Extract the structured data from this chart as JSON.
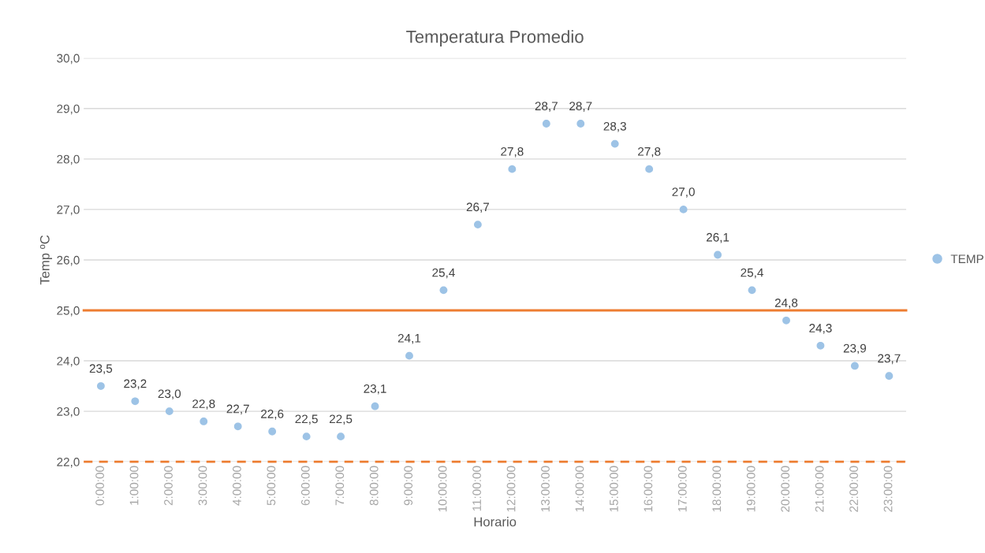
{
  "chart_data": {
    "type": "scatter",
    "title": "Temperatura Promedio",
    "xlabel": "Horario",
    "ylabel": "Temp ºC",
    "categories": [
      "0:00:00",
      "1:00:00",
      "2:00:00",
      "3:00:00",
      "4:00:00",
      "5:00:00",
      "6:00:00",
      "7:00:00",
      "8:00:00",
      "9:00:00",
      "10:00:00",
      "11:00:00",
      "12:00:00",
      "13:00:00",
      "14:00:00",
      "15:00:00",
      "16:00:00",
      "17:00:00",
      "18:00:00",
      "19:00:00",
      "20:00:00",
      "21:00:00",
      "22:00:00",
      "23:00:00"
    ],
    "series": [
      {
        "name": "TEMP",
        "color": "#9dc3e6",
        "values": [
          23.5,
          23.2,
          23.0,
          22.8,
          22.7,
          22.6,
          22.5,
          22.5,
          23.1,
          24.1,
          25.4,
          26.7,
          27.8,
          28.7,
          28.7,
          28.3,
          27.8,
          27.0,
          26.1,
          25.4,
          24.8,
          24.3,
          23.9,
          23.7
        ],
        "value_labels": [
          "23,5",
          "23,2",
          "23,0",
          "22,8",
          "22,7",
          "22,6",
          "22,5",
          "22,5",
          "23,1",
          "24,1",
          "25,4",
          "26,7",
          "27,8",
          "28,7",
          "28,7",
          "28,3",
          "27,8",
          "27,0",
          "26,1",
          "25,4",
          "24,8",
          "24,3",
          "23,9",
          "23,7"
        ]
      }
    ],
    "ylim": [
      22,
      30
    ],
    "yticks": [
      {
        "value": 22,
        "label": "22,0"
      },
      {
        "value": 23,
        "label": "23,0"
      },
      {
        "value": 24,
        "label": "24,0"
      },
      {
        "value": 25,
        "label": "25,0"
      },
      {
        "value": 26,
        "label": "26,0"
      },
      {
        "value": 27,
        "label": "27,0"
      },
      {
        "value": 28,
        "label": "28,0"
      },
      {
        "value": 29,
        "label": "29,0"
      },
      {
        "value": 30,
        "label": "30,0"
      }
    ],
    "ref_lines": [
      {
        "axis": "y",
        "value": 25,
        "color": "#ed7d31",
        "line_style": "solid"
      },
      {
        "axis": "y",
        "value": 22,
        "color": "#ed7d31",
        "line_style": "dashed"
      }
    ],
    "grid": "y",
    "legend": "right",
    "marker": "circle"
  }
}
